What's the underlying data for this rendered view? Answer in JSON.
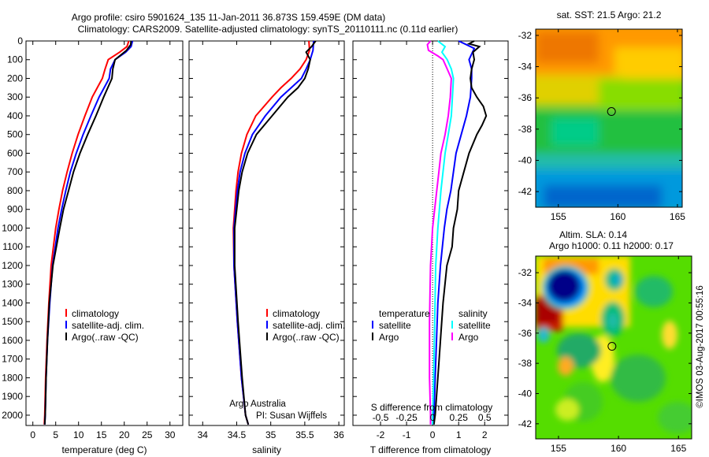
{
  "title": {
    "line1": "Argo profile: csiro 5901624_135 11-Jan-2011 36.873S 159.459E (DM data)",
    "line2": "Climatology: CARS2009. Satellite-adjusted climatology: synTS_20110111.nc (0.11d earlier)"
  },
  "credits": {
    "line1": "Argo Australia",
    "line2": "PI: Susan Wijffels"
  },
  "copyright": "©IMOS 03-Aug-2017 00:55:16",
  "colors": {
    "climatology": "#ff0000",
    "satellite": "#0000ff",
    "argo": "#000000",
    "s_satellite": "#00ffff",
    "s_argo": "#ff00ff"
  },
  "chart_data": [
    {
      "type": "line",
      "name": "temperature",
      "xlabel": "temperature (deg C)",
      "ylabel": "depth",
      "xlim": [
        -1.5,
        32.8
      ],
      "ylim": [
        2055,
        0
      ],
      "xticks": [
        0,
        5,
        10,
        15,
        20,
        25,
        30
      ],
      "yticks": [
        0,
        100,
        200,
        300,
        400,
        500,
        600,
        700,
        800,
        900,
        1000,
        1100,
        1200,
        1300,
        1400,
        1500,
        1600,
        1700,
        1800,
        1900,
        2000
      ],
      "legend": [
        "climatology",
        "satellite-adj. clim.",
        "Argo(..raw -QC)"
      ],
      "series": [
        {
          "name": "climatology",
          "color": "climatology",
          "depth": [
            0,
            30,
            60,
            100,
            150,
            200,
            300,
            400,
            500,
            600,
            700,
            800,
            900,
            1000,
            1200,
            1400,
            1600,
            1800,
            2000,
            2050
          ],
          "values": [
            21.0,
            20.6,
            19.0,
            16.5,
            15.8,
            15.2,
            13.0,
            11.4,
            9.9,
            8.6,
            7.5,
            6.5,
            5.7,
            5.0,
            4.0,
            3.5,
            3.1,
            2.8,
            2.6,
            2.5
          ]
        },
        {
          "name": "satellite-adj. clim.",
          "color": "satellite",
          "depth": [
            0,
            30,
            60,
            100,
            150,
            200,
            300,
            400,
            500,
            600,
            700,
            800,
            900,
            1000,
            1200,
            1400,
            1600,
            1800,
            2000,
            2050
          ],
          "values": [
            21.8,
            21.5,
            20.3,
            18.0,
            17.0,
            16.7,
            14.5,
            12.7,
            11.0,
            9.5,
            8.2,
            7.2,
            6.3,
            5.5,
            4.3,
            3.7,
            3.2,
            2.9,
            2.7,
            2.6
          ]
        },
        {
          "name": "Argo(..raw -QC)",
          "color": "argo",
          "depth": [
            0,
            20,
            50,
            100,
            150,
            200,
            300,
            400,
            500,
            600,
            700,
            800,
            900,
            1000,
            1200,
            1400,
            1600,
            1800,
            2000,
            2050
          ],
          "values": [
            21.5,
            21.4,
            20.5,
            18.0,
            17.5,
            17.3,
            15.5,
            13.8,
            12.0,
            10.3,
            8.9,
            7.8,
            6.7,
            5.9,
            4.4,
            3.6,
            3.2,
            2.9,
            2.7,
            2.6
          ]
        }
      ]
    },
    {
      "type": "line",
      "name": "salinity",
      "xlabel": "salinity",
      "xlim": [
        33.8,
        36.08
      ],
      "ylim": [
        2055,
        0
      ],
      "xticks": [
        34,
        34.5,
        35,
        35.5,
        36
      ],
      "legend": [
        "climatology",
        "satellite-adj. clim.",
        "Argo(..raw -QC)"
      ],
      "series": [
        {
          "name": "climatology",
          "color": "climatology",
          "depth": [
            0,
            50,
            100,
            150,
            200,
            250,
            300,
            400,
            500,
            600,
            700,
            800,
            1000,
            1200,
            1500,
            1800,
            2000,
            2050
          ],
          "values": [
            35.56,
            35.57,
            35.52,
            35.43,
            35.3,
            35.15,
            35.02,
            34.78,
            34.65,
            34.57,
            34.52,
            34.49,
            34.45,
            34.46,
            34.51,
            34.57,
            34.63,
            34.67
          ]
        },
        {
          "name": "satellite-adj. clim.",
          "color": "satellite",
          "depth": [
            0,
            50,
            100,
            150,
            200,
            250,
            300,
            400,
            500,
            600,
            700,
            800,
            1000,
            1200,
            1500,
            1800,
            2000,
            2050
          ],
          "values": [
            35.63,
            35.62,
            35.58,
            35.52,
            35.45,
            35.3,
            35.15,
            34.92,
            34.73,
            34.62,
            34.55,
            34.51,
            34.46,
            34.46,
            34.51,
            34.57,
            34.63,
            34.67
          ]
        },
        {
          "name": "Argo(..raw -QC)",
          "color": "argo",
          "depth": [
            0,
            30,
            60,
            100,
            150,
            200,
            250,
            300,
            400,
            500,
            600,
            700,
            800,
            1000,
            1200,
            1500,
            1800,
            2000,
            2050
          ],
          "values": [
            35.66,
            35.6,
            35.52,
            35.58,
            35.55,
            35.5,
            35.4,
            35.25,
            35.02,
            34.79,
            34.66,
            34.58,
            34.53,
            34.47,
            34.47,
            34.52,
            34.58,
            34.63,
            34.67
          ]
        }
      ]
    },
    {
      "type": "line",
      "name": "differences",
      "xlabel": "T difference from climatology",
      "x2label": "S difference from climatology",
      "xlim": [
        -3.06,
        2.9
      ],
      "x2lim": [
        -0.765,
        0.725
      ],
      "ylim": [
        2055,
        0
      ],
      "xticks": [
        -2,
        -1,
        0,
        1,
        2
      ],
      "x2ticks": [
        -0.5,
        -0.25,
        0,
        0.25,
        0.5
      ],
      "legend": {
        "temperature": "temperature",
        "salinity": "salinity",
        "satellite": "satellite",
        "argo": "Argo"
      },
      "series": [
        {
          "name": "T satellite",
          "axis": "T",
          "color": "satellite",
          "depth": [
            0,
            20,
            40,
            70,
            100,
            150,
            200,
            300,
            400,
            500,
            600,
            700,
            800,
            900,
            1000,
            1200,
            1400,
            1600,
            1800,
            2000,
            2050
          ],
          "values": [
            1.0,
            1.3,
            1.6,
            1.5,
            1.4,
            1.5,
            1.5,
            1.45,
            1.3,
            1.1,
            0.9,
            0.8,
            0.7,
            0.55,
            0.45,
            0.3,
            0.2,
            0.15,
            0.1,
            0.05,
            0.03
          ]
        },
        {
          "name": "T Argo",
          "axis": "T",
          "color": "argo",
          "depth": [
            0,
            15,
            30,
            60,
            100,
            150,
            200,
            250,
            300,
            350,
            400,
            450,
            500,
            600,
            700,
            800,
            900,
            1000,
            1100,
            1200,
            1400,
            1600,
            1800,
            2000,
            2050
          ],
          "values": [
            1.6,
            1.4,
            1.8,
            1.55,
            1.6,
            1.5,
            1.45,
            1.5,
            1.7,
            1.95,
            2.06,
            1.9,
            1.7,
            1.4,
            1.2,
            1.0,
            0.95,
            0.8,
            0.75,
            0.55,
            0.4,
            0.3,
            0.2,
            0.1,
            0.05
          ]
        },
        {
          "name": "S satellite",
          "axis": "S",
          "color": "s_satellite",
          "depth": [
            0,
            30,
            60,
            100,
            150,
            200,
            300,
            400,
            500,
            600,
            800,
            1000,
            1200,
            1500,
            1800,
            2000,
            2050
          ],
          "values": [
            0.05,
            0.12,
            0.09,
            0.14,
            0.18,
            0.2,
            0.19,
            0.18,
            0.15,
            0.12,
            0.08,
            0.05,
            0.03,
            0.02,
            0.01,
            0.0,
            0.0
          ]
        },
        {
          "name": "S Argo",
          "axis": "S",
          "color": "s_argo",
          "depth": [
            0,
            20,
            50,
            80,
            100,
            150,
            200,
            300,
            400,
            500,
            600,
            700,
            800,
            1000,
            1200,
            1500,
            1800,
            2000,
            2050
          ],
          "values": [
            -0.02,
            -0.05,
            -0.04,
            0.05,
            0.1,
            0.14,
            0.18,
            0.17,
            0.15,
            0.12,
            0.08,
            0.06,
            0.04,
            0.0,
            -0.02,
            -0.03,
            -0.03,
            -0.02,
            -0.02
          ]
        }
      ]
    },
    {
      "type": "heatmap",
      "name": "sst-map",
      "title": "sat. SST: 21.5 Argo: 21.2",
      "xlim": [
        153.1,
        165.4
      ],
      "ylim": [
        -43.0,
        -31.6
      ],
      "xticks": [
        155,
        160,
        165
      ],
      "yticks": [
        -32,
        -34,
        -36,
        -38,
        -40,
        -42
      ],
      "marker": {
        "lon": 159.459,
        "lat": -36.873
      }
    },
    {
      "type": "heatmap",
      "name": "sla-map",
      "title": "Altim. SLA: 0.14",
      "subtitle": "Argo h1000: 0.11 h2000: 0.17",
      "xlim": [
        153.1,
        166.1
      ],
      "ylim": [
        -43.0,
        -30.9
      ],
      "xticks": [
        155,
        160,
        165
      ],
      "yticks": [
        -32,
        -34,
        -36,
        -38,
        -40,
        -42
      ],
      "marker": {
        "lon": 159.459,
        "lat": -36.873
      }
    }
  ]
}
